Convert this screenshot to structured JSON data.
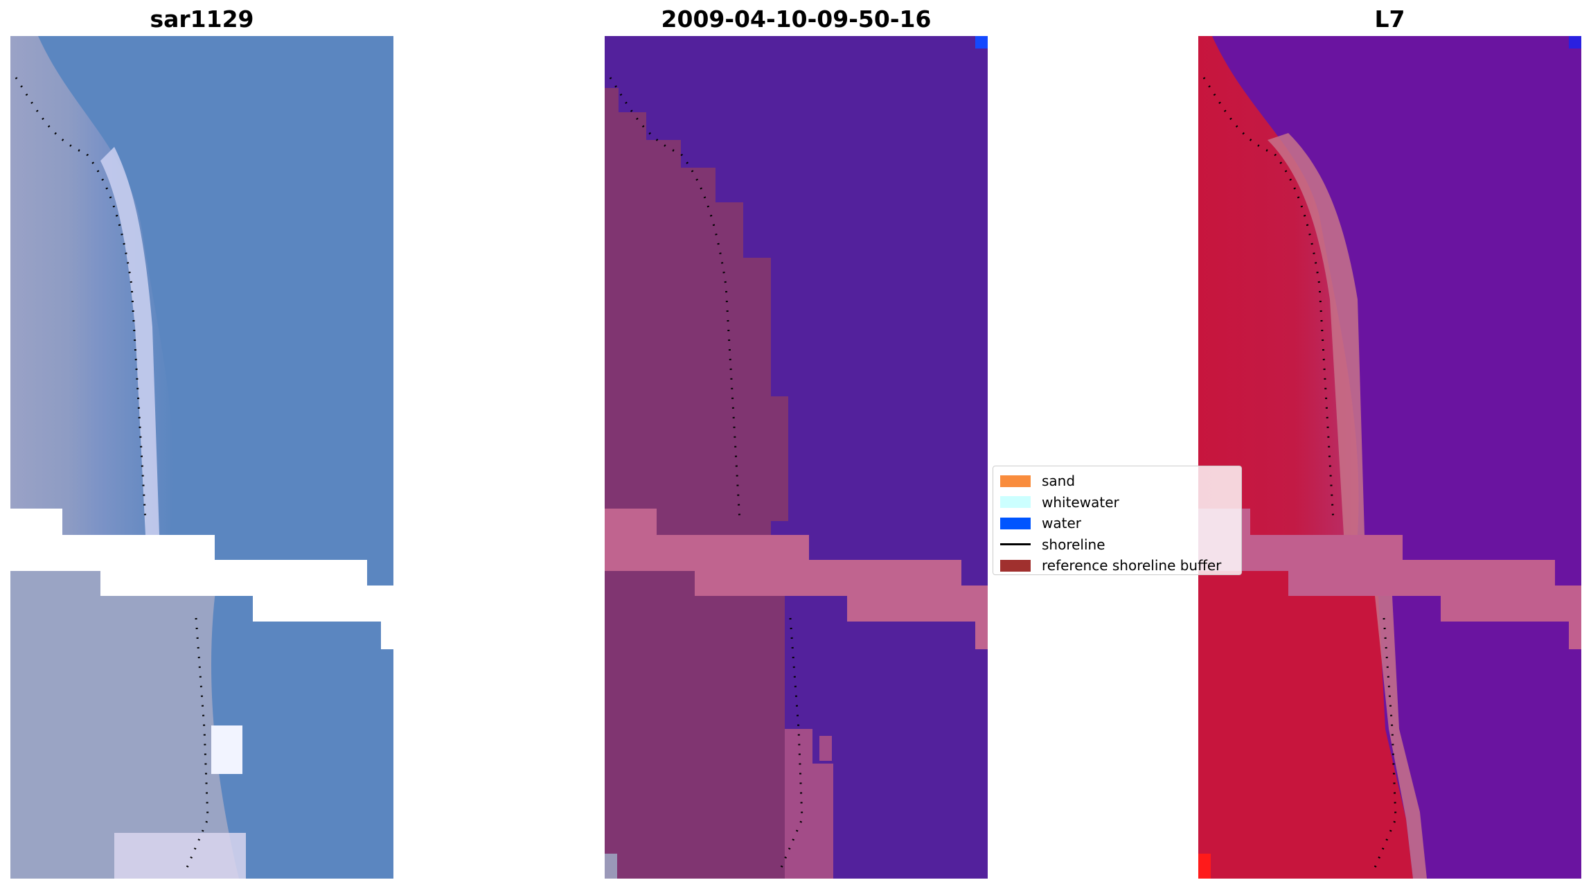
{
  "panels": [
    {
      "title": "sar1129"
    },
    {
      "title": "2009-04-10-09-50-16"
    },
    {
      "title": "L7"
    }
  ],
  "legend": {
    "items": [
      {
        "label": "sand",
        "color": "#f98c3d"
      },
      {
        "label": "whitewater",
        "color": "#ccffff"
      },
      {
        "label": "water",
        "color": "#0055ff"
      },
      {
        "label": "shoreline",
        "color": "#000000"
      },
      {
        "label": "reference shoreline buffer",
        "color": "#a0302e"
      }
    ]
  },
  "colors": {
    "rgb_water": "#5b86c0",
    "rgb_land": "#8a9cc4",
    "rgb_surf": "#e8e8ff",
    "class_water": "#53219c",
    "class_land": "#803571",
    "class_buffer": "#c0648f",
    "index_water": "#6a14a0",
    "index_land": "#c7153d",
    "index_buffer": "#c15f8e"
  }
}
